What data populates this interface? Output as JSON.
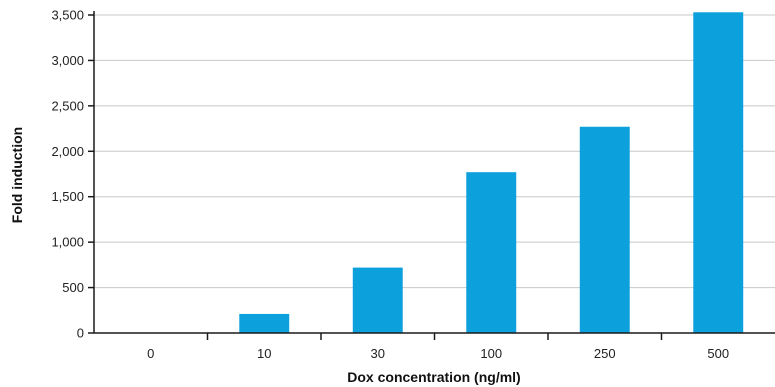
{
  "chart_data": {
    "type": "bar",
    "categories": [
      "0",
      "10",
      "30",
      "100",
      "250",
      "500"
    ],
    "values": [
      0,
      210,
      720,
      1770,
      2270,
      3530
    ],
    "xlabel": "Dox concentration (ng/ml)",
    "ylabel": "Fold induction",
    "ylim": [
      0,
      3500
    ],
    "yticks": [
      0,
      500,
      1000,
      1500,
      2000,
      2500,
      3000,
      3500
    ],
    "ytick_labels": [
      "0",
      "500",
      "1,000",
      "1,500",
      "2,000",
      "2,500",
      "3,000",
      "3,500"
    ],
    "grid": "horizontal",
    "legend": "none",
    "bar_color": "#0ca0dd"
  }
}
